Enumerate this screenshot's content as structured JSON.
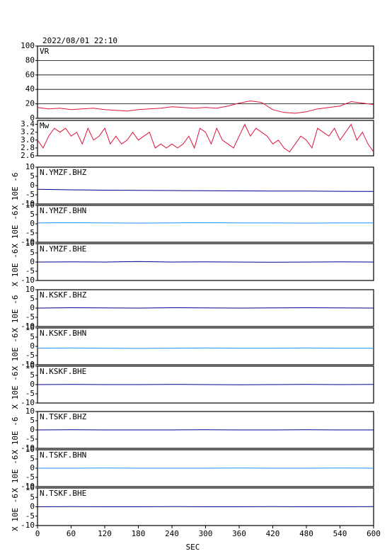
{
  "chart_data": [
    {
      "type": "line",
      "title": "2022/08/01 22:10",
      "label": "VR",
      "color": "#dc143c",
      "grid": true,
      "xlim": [
        0,
        600
      ],
      "ylim": [
        0,
        100
      ],
      "yticks": [
        0,
        20,
        40,
        60,
        80,
        100
      ],
      "x": [
        0,
        20,
        40,
        60,
        80,
        100,
        120,
        140,
        160,
        180,
        200,
        220,
        240,
        260,
        280,
        300,
        320,
        340,
        360,
        380,
        400,
        420,
        440,
        460,
        480,
        500,
        520,
        540,
        560,
        580,
        600
      ],
      "values": [
        15,
        13,
        14,
        12,
        13,
        14,
        12,
        11,
        10,
        12,
        13,
        14,
        16,
        15,
        14,
        15,
        14,
        17,
        21,
        24,
        22,
        12,
        8,
        7,
        9,
        13,
        15,
        17,
        23,
        21,
        19
      ]
    },
    {
      "type": "line",
      "label": "Mw",
      "color": "#dc143c",
      "xlim": [
        0,
        600
      ],
      "ylim": [
        2.6,
        3.5
      ],
      "yticks": [
        2.6,
        2.8,
        {
          "value": 3,
          "label": "3.0"
        },
        3.2,
        3.4
      ],
      "x": [
        0,
        10,
        20,
        30,
        40,
        50,
        60,
        70,
        80,
        90,
        100,
        110,
        120,
        130,
        140,
        150,
        160,
        170,
        180,
        190,
        200,
        210,
        220,
        230,
        240,
        250,
        260,
        270,
        280,
        290,
        300,
        310,
        320,
        330,
        340,
        350,
        360,
        370,
        380,
        390,
        400,
        410,
        420,
        430,
        440,
        450,
        460,
        470,
        480,
        490,
        500,
        510,
        520,
        530,
        540,
        550,
        560,
        570,
        580,
        590,
        600
      ],
      "values": [
        3.0,
        2.8,
        3.1,
        3.3,
        3.2,
        3.3,
        3.1,
        3.2,
        2.9,
        3.3,
        3.0,
        3.1,
        3.3,
        2.9,
        3.1,
        2.9,
        3.0,
        3.2,
        3.0,
        3.1,
        3.2,
        2.8,
        2.9,
        2.8,
        2.9,
        2.8,
        2.9,
        3.1,
        2.8,
        3.3,
        3.2,
        2.9,
        3.3,
        3.0,
        2.9,
        2.8,
        3.1,
        3.4,
        3.1,
        3.3,
        3.2,
        3.1,
        2.9,
        3.0,
        2.8,
        2.7,
        2.9,
        3.1,
        3.0,
        2.8,
        3.3,
        3.2,
        3.1,
        3.3,
        3.0,
        3.2,
        3.4,
        3.0,
        3.2,
        2.9,
        2.7
      ]
    },
    {
      "type": "line",
      "label": "N.YMZF.BHZ",
      "ylabel": "X 10E -6",
      "color": "#00008b",
      "xlim": [
        0,
        600
      ],
      "ylim": [
        -10,
        10
      ],
      "yticks": [
        -10,
        -5,
        0,
        5,
        10
      ],
      "x": [
        0,
        60,
        120,
        180,
        240,
        300,
        360,
        420,
        480,
        540,
        600
      ],
      "values": [
        -2,
        -2.3,
        -2.5,
        -2.6,
        -2.7,
        -2.8,
        -2.9,
        -3,
        -3,
        -3.1,
        -3.2
      ]
    },
    {
      "type": "line",
      "label": "N.YMZF.BHN",
      "ylabel": "X 10E -6",
      "color": "#1e90ff",
      "xlim": [
        0,
        600
      ],
      "ylim": [
        -10,
        10
      ],
      "yticks": [
        -10,
        -5,
        0,
        5,
        10
      ],
      "x": [
        0,
        60,
        120,
        180,
        240,
        300,
        360,
        420,
        480,
        540,
        600
      ],
      "values": [
        0.5,
        0.6,
        0.5,
        0.4,
        0.5,
        0.6,
        0.5,
        0.5,
        0.4,
        0.5,
        0.5
      ]
    },
    {
      "type": "line",
      "label": "N.YMZF.BHE",
      "ylabel": "X 10E -6",
      "color": "#00008b",
      "xlim": [
        0,
        600
      ],
      "ylim": [
        -10,
        10
      ],
      "yticks": [
        -10,
        -5,
        0,
        5,
        10
      ],
      "x": [
        0,
        60,
        120,
        180,
        240,
        300,
        360,
        420,
        480,
        540,
        600
      ],
      "values": [
        0,
        0.1,
        0,
        0.3,
        0,
        0.1,
        0,
        -0.1,
        0,
        0.1,
        0
      ]
    },
    {
      "type": "line",
      "label": "N.KSKF.BHZ",
      "ylabel": "X 10E -6",
      "color": "#00008b",
      "xlim": [
        0,
        600
      ],
      "ylim": [
        -10,
        10
      ],
      "yticks": [
        -10,
        -5,
        0,
        5,
        10
      ],
      "x": [
        0,
        60,
        120,
        180,
        240,
        300,
        360,
        420,
        480,
        540,
        600
      ],
      "values": [
        0,
        0.2,
        0.1,
        0,
        0.2,
        0.1,
        0,
        0.1,
        0.2,
        0.1,
        0
      ]
    },
    {
      "type": "line",
      "label": "N.KSKF.BHN",
      "ylabel": "X 10E -6",
      "color": "#1e90ff",
      "xlim": [
        0,
        600
      ],
      "ylim": [
        -10,
        10
      ],
      "yticks": [
        -10,
        -5,
        0,
        5,
        10
      ],
      "x": [
        0,
        60,
        120,
        180,
        240,
        300,
        360,
        420,
        480,
        540,
        600
      ],
      "values": [
        -1,
        -0.9,
        -1,
        -1.1,
        -1,
        -0.9,
        -1,
        -1,
        -0.9,
        -1,
        -1
      ]
    },
    {
      "type": "line",
      "label": "N.KSKF.BHE",
      "ylabel": "X 10E -6",
      "color": "#00008b",
      "xlim": [
        0,
        600
      ],
      "ylim": [
        -10,
        10
      ],
      "yticks": [
        -10,
        -5,
        0,
        5,
        10
      ],
      "x": [
        0,
        60,
        120,
        180,
        240,
        300,
        360,
        420,
        480,
        540,
        600
      ],
      "values": [
        0,
        0.1,
        0,
        0,
        0.1,
        0,
        -0.1,
        0,
        0.1,
        0,
        0.1
      ]
    },
    {
      "type": "line",
      "label": "N.TSKF.BHZ",
      "ylabel": "X 10E -6",
      "color": "#00008b",
      "xlim": [
        0,
        600
      ],
      "ylim": [
        -10,
        10
      ],
      "yticks": [
        -10,
        -5,
        0,
        5,
        10
      ],
      "x": [
        0,
        60,
        120,
        180,
        240,
        300,
        360,
        420,
        480,
        540,
        600
      ],
      "values": [
        0,
        0.1,
        0,
        0,
        0,
        0.1,
        0,
        0,
        0.1,
        0,
        0
      ]
    },
    {
      "type": "line",
      "label": "N.TSKF.BHN",
      "ylabel": "X 10E -6",
      "color": "#1e90ff",
      "xlim": [
        0,
        600
      ],
      "ylim": [
        -10,
        10
      ],
      "yticks": [
        -10,
        -5,
        0,
        5,
        10
      ],
      "x": [
        0,
        60,
        120,
        180,
        240,
        300,
        360,
        420,
        480,
        540,
        600
      ],
      "values": [
        0,
        0,
        0.1,
        0,
        0,
        0,
        0.1,
        0,
        0,
        0.1,
        0
      ]
    },
    {
      "type": "line",
      "label": "N.TSKF.BHE",
      "ylabel": "X 10E -6",
      "color": "#00008b",
      "xlim": [
        0,
        600
      ],
      "ylim": [
        -10,
        10
      ],
      "yticks": [
        -10,
        -5,
        0,
        5,
        10
      ],
      "x": [
        0,
        60,
        120,
        180,
        240,
        300,
        360,
        420,
        480,
        540,
        600
      ],
      "values": [
        0,
        0.1,
        0,
        0,
        0.1,
        0,
        0,
        0.1,
        0,
        0,
        0.1
      ],
      "xticks": [
        0,
        60,
        120,
        180,
        240,
        300,
        360,
        420,
        480,
        540,
        600
      ],
      "xlabel": "SEC"
    }
  ]
}
